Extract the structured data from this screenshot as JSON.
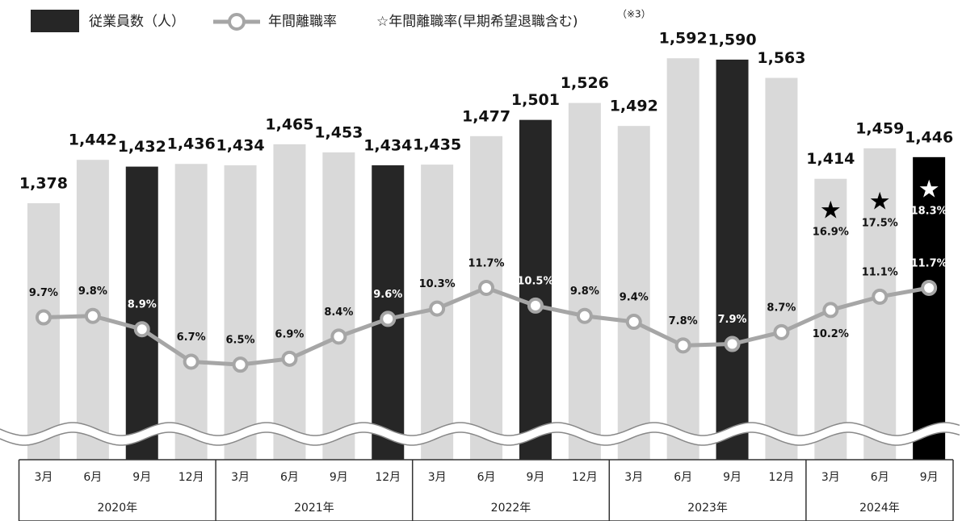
{
  "chart_data": {
    "type": "bar-line",
    "groups": [
      {
        "label": "2020年",
        "categories": [
          "3月",
          "6月",
          "9月",
          "12月"
        ]
      },
      {
        "label": "2021年",
        "categories": [
          "3月",
          "6月",
          "9月",
          "12月"
        ]
      },
      {
        "label": "2022年",
        "categories": [
          "3月",
          "6月",
          "9月",
          "12月"
        ]
      },
      {
        "label": "2023年",
        "categories": [
          "3月",
          "6月",
          "9月",
          "12月"
        ]
      },
      {
        "label": "2024年",
        "categories": [
          "3月",
          "6月",
          "9月"
        ]
      }
    ],
    "series": [
      {
        "name": "従業員数（人）",
        "type": "bar",
        "color": "#262626",
        "colors": [
          "#d9d9d9",
          "#d9d9d9",
          "#262626",
          "#d9d9d9",
          "#d9d9d9",
          "#d9d9d9",
          "#d9d9d9",
          "#262626",
          "#d9d9d9",
          "#d9d9d9",
          "#262626",
          "#d9d9d9",
          "#d9d9d9",
          "#d9d9d9",
          "#262626",
          "#d9d9d9",
          "#d9d9d9",
          "#d9d9d9",
          "#000000"
        ],
        "values": [
          1378,
          1442,
          1432,
          1436,
          1434,
          1465,
          1453,
          1434,
          1435,
          1477,
          1501,
          1526,
          1492,
          1592,
          1590,
          1563,
          1414,
          1459,
          1446
        ],
        "value_labels": [
          "1,378",
          "1,442",
          "1,432",
          "1,436",
          "1,434",
          "1,465",
          "1,453",
          "1,434",
          "1,435",
          "1,477",
          "1,501",
          "1,526",
          "1,492",
          "1,592",
          "1,590",
          "1,563",
          "1,414",
          "1,459",
          "1,446"
        ]
      },
      {
        "name": "年間離職率",
        "type": "line",
        "axis": "y2",
        "color": "#a6a6a6",
        "values": [
          9.7,
          9.8,
          8.9,
          6.7,
          6.5,
          6.9,
          8.4,
          9.6,
          10.3,
          11.7,
          10.5,
          9.8,
          9.4,
          7.8,
          7.9,
          8.7,
          10.2,
          11.1,
          11.7
        ],
        "value_labels": [
          "9.7%",
          "9.8%",
          "8.9%",
          "6.7%",
          "6.5%",
          "6.9%",
          "8.4%",
          "9.6%",
          "10.3%",
          "11.7%",
          "10.5%",
          "9.8%",
          "9.4%",
          "7.8%",
          "7.9%",
          "8.7%",
          "10.2%",
          "11.1%",
          "11.7%"
        ]
      },
      {
        "name": "☆年間離職率(早期希望退職含む)",
        "type": "star",
        "axis": "y2",
        "color": "#000000",
        "values": [
          null,
          null,
          null,
          null,
          null,
          null,
          null,
          null,
          null,
          null,
          null,
          null,
          null,
          null,
          null,
          null,
          16.9,
          17.5,
          18.3
        ],
        "value_labels": [
          null,
          null,
          null,
          null,
          null,
          null,
          null,
          null,
          null,
          null,
          null,
          null,
          null,
          null,
          null,
          null,
          "16.9%",
          "17.5%",
          "18.3%"
        ]
      }
    ],
    "legend_note": "（※3）",
    "ylim": [
      1035,
      1678
    ],
    "y2lim": [
      1.7,
      31.2
    ]
  }
}
